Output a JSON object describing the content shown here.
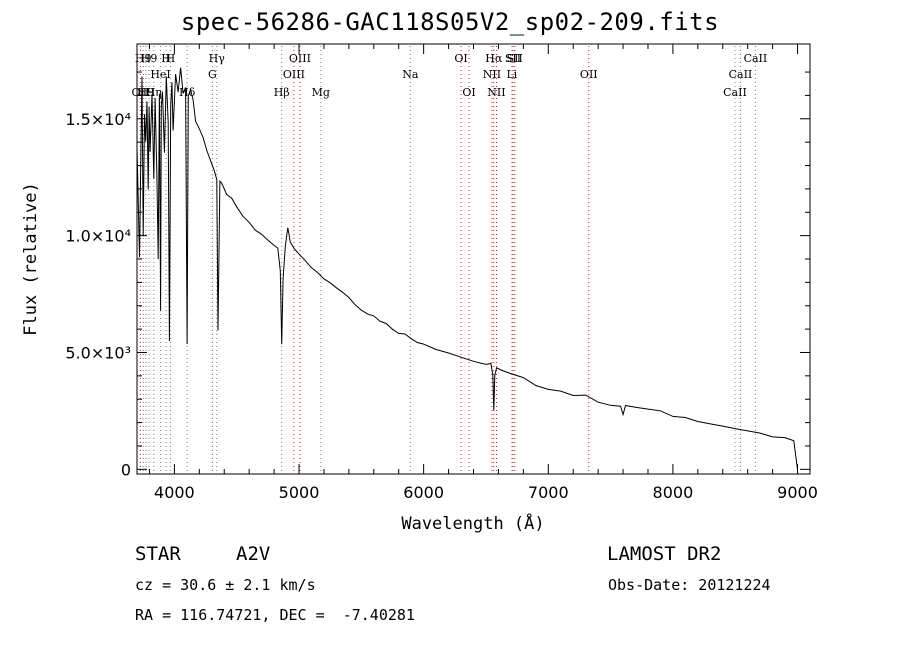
{
  "chart_data": {
    "type": "line",
    "title": "spec-56286-GAC118S05V2_sp02-209.fits",
    "xlabel": "Wavelength (Å)",
    "ylabel": "Flux (relative)",
    "xlim": [
      3700,
      9100
    ],
    "ylim": [
      -200,
      18200
    ],
    "x_ticks": [
      {
        "value": 4000,
        "label": "4000"
      },
      {
        "value": 5000,
        "label": "5000"
      },
      {
        "value": 6000,
        "label": "6000"
      },
      {
        "value": 7000,
        "label": "7000"
      },
      {
        "value": 8000,
        "label": "8000"
      },
      {
        "value": 9000,
        "label": "9000"
      }
    ],
    "y_ticks": [
      {
        "value": 0,
        "label": "0"
      },
      {
        "value": 5000,
        "label": "5.0×10³"
      },
      {
        "value": 10000,
        "label": "1.0×10⁴"
      },
      {
        "value": 15000,
        "label": "1.5×10⁴"
      }
    ],
    "series": [
      {
        "x": [
          3700,
          3720,
          3730,
          3740,
          3750,
          3760,
          3770,
          3780,
          3790,
          3797,
          3805,
          3820,
          3835,
          3845,
          3860,
          3870,
          3880,
          3889,
          3895,
          3905,
          3920,
          3935,
          3950,
          3960,
          3970,
          3980,
          3990,
          4010,
          4030,
          4050,
          4070,
          4090,
          4102,
          4112,
          4130,
          4150,
          4170,
          4200,
          4230,
          4260,
          4290,
          4320,
          4340,
          4350,
          4365,
          4380,
          4420,
          4460,
          4500,
          4550,
          4600,
          4650,
          4700,
          4750,
          4800,
          4830,
          4850,
          4861,
          4872,
          4890,
          4910,
          4930,
          4960,
          5000,
          5050,
          5100,
          5150,
          5200,
          5250,
          5300,
          5350,
          5400,
          5450,
          5500,
          5550,
          5600,
          5650,
          5700,
          5750,
          5800,
          5850,
          5900,
          5950,
          6000,
          6100,
          6200,
          6300,
          6400,
          6500,
          6540,
          6555,
          6563,
          6571,
          6585,
          6620,
          6700,
          6800,
          6900,
          7000,
          7100,
          7200,
          7300,
          7400,
          7500,
          7580,
          7600,
          7620,
          7700,
          7800,
          7900,
          8000,
          8100,
          8200,
          8300,
          8400,
          8500,
          8600,
          8700,
          8800,
          8900,
          8970,
          9000
        ],
        "y": [
          13800,
          9000,
          13000,
          16800,
          10000,
          15200,
          14000,
          15800,
          12000,
          15500,
          13500,
          16000,
          12500,
          15800,
          12500,
          9000,
          16000,
          6800,
          15500,
          16200,
          13500,
          16800,
          14800,
          5500,
          15600,
          16600,
          14500,
          17000,
          16200,
          17200,
          16000,
          16300,
          5400,
          16000,
          16300,
          15800,
          14800,
          14500,
          14200,
          13600,
          13200,
          12700,
          12400,
          6000,
          12300,
          12200,
          11800,
          11600,
          11300,
          10900,
          10600,
          10300,
          10000,
          9800,
          9600,
          9400,
          8500,
          5400,
          8200,
          9600,
          10400,
          9800,
          9400,
          9300,
          9000,
          8700,
          8400,
          8200,
          8000,
          7800,
          7600,
          7350,
          7100,
          6900,
          6700,
          6550,
          6400,
          6200,
          6050,
          5900,
          5750,
          5600,
          5500,
          5400,
          5200,
          5000,
          4800,
          4650,
          4500,
          4450,
          4000,
          2600,
          4000,
          4300,
          4200,
          4050,
          3850,
          3650,
          3500,
          3350,
          3200,
          3100,
          2950,
          2800,
          2700,
          2300,
          2750,
          2650,
          2550,
          2450,
          2300,
          2200,
          2100,
          2000,
          1850,
          1750,
          1650,
          1500,
          1400,
          1300,
          1250,
          0
        ]
      }
    ],
    "line_markers": [
      {
        "wavelength": 3727,
        "label": "OII",
        "row": 3
      },
      {
        "wavelength": 3750,
        "label": "H9",
        "row": 1
      },
      {
        "wavelength": 3771,
        "label": "H9",
        "row": 3
      },
      {
        "wavelength": 3797,
        "label": "H9",
        "row": 1
      },
      {
        "wavelength": 3835,
        "label": "Hη",
        "row": 3
      },
      {
        "wavelength": 3889,
        "label": "HeI",
        "row": 2
      },
      {
        "wavelength": 3933,
        "label": "H",
        "row": 1
      },
      {
        "wavelength": 3968,
        "label": "H",
        "row": 1
      },
      {
        "wavelength": 4102,
        "label": "Hδ",
        "row": 3
      },
      {
        "wavelength": 4305,
        "label": "G",
        "row": 2
      },
      {
        "wavelength": 4340,
        "label": "Hγ",
        "row": 1
      },
      {
        "wavelength": 4861,
        "label": "Hβ",
        "row": 3
      },
      {
        "wavelength": 4959,
        "label": "OIII",
        "row": 2
      },
      {
        "wavelength": 5007,
        "label": "OIII",
        "row": 1
      },
      {
        "wavelength": 5175,
        "label": "Mg",
        "row": 3
      },
      {
        "wavelength": 5893,
        "label": "Na",
        "row": 2
      },
      {
        "wavelength": 6300,
        "label": "OI",
        "row": 1
      },
      {
        "wavelength": 6364,
        "label": "OI",
        "row": 3
      },
      {
        "wavelength": 6548,
        "label": "NII",
        "row": 2
      },
      {
        "wavelength": 6563,
        "label": "Hα",
        "row": 1
      },
      {
        "wavelength": 6584,
        "label": "NII",
        "row": 3
      },
      {
        "wavelength": 6717,
        "label": "SII",
        "row": 1
      },
      {
        "wavelength": 6731,
        "label": "SII",
        "row": 1
      },
      {
        "wavelength": 6708,
        "label": "Li",
        "row": 2
      },
      {
        "wavelength": 7325,
        "label": "OII",
        "row": 2
      },
      {
        "wavelength": 8498,
        "label": "CaII",
        "row": 3
      },
      {
        "wavelength": 8542,
        "label": "CaII",
        "row": 2
      },
      {
        "wavelength": 8662,
        "label": "CaII",
        "row": 1
      }
    ],
    "grid": false,
    "legend": "none"
  },
  "info": {
    "class_label": "STAR",
    "subclass": "A2V",
    "survey": "LAMOST DR2",
    "redshift": "cz = 30.6 ± 2.1 km/s",
    "obs_date": "Obs-Date: 20121224",
    "coords": "RA = 116.74721, DEC =  -7.40281"
  },
  "colors": {
    "spectrum": "#000000",
    "emission_marker": "#d11a1a",
    "absorption_marker": "#7a7a7a"
  }
}
